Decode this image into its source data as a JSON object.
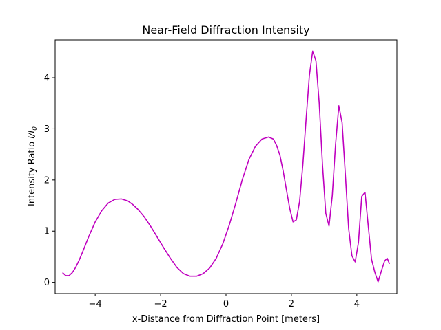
{
  "chart_data": {
    "type": "line",
    "title": "Near-Field Diffraction Intensity",
    "xlabel": "x-Distance from Diffraction Point [meters]",
    "ylabel_main": "Intensity Ratio ",
    "ylabel_italic": "I/I",
    "ylabel_sub": "0",
    "xlim": [
      -5.225,
      5.225
    ],
    "ylim": [
      -0.22,
      4.74
    ],
    "xticks": [
      -4,
      -2,
      0,
      2,
      4
    ],
    "yticks": [
      0,
      1,
      2,
      3,
      4
    ],
    "xtick_labels": [
      "−4",
      "−2",
      "0",
      "2",
      "4"
    ],
    "ytick_labels": [
      "0",
      "1",
      "2",
      "3",
      "4"
    ],
    "grid": false,
    "series": [
      {
        "color": "#bf00bf",
        "x": [
          -5.0,
          -4.9,
          -4.8,
          -4.7,
          -4.6,
          -4.5,
          -4.4,
          -4.2,
          -4.0,
          -3.8,
          -3.6,
          -3.4,
          -3.2,
          -3.0,
          -2.85,
          -2.7,
          -2.5,
          -2.3,
          -2.1,
          -1.9,
          -1.7,
          -1.5,
          -1.3,
          -1.1,
          -0.9,
          -0.7,
          -0.5,
          -0.3,
          -0.1,
          0.1,
          0.3,
          0.5,
          0.7,
          0.9,
          1.1,
          1.3,
          1.45,
          1.55,
          1.65,
          1.75,
          1.85,
          1.95,
          2.05,
          2.15,
          2.25,
          2.35,
          2.45,
          2.55,
          2.65,
          2.75,
          2.85,
          2.95,
          3.05,
          3.15,
          3.25,
          3.35,
          3.45,
          3.55,
          3.65,
          3.75,
          3.85,
          3.95,
          4.05,
          4.15,
          4.25,
          4.35,
          4.45,
          4.55,
          4.65,
          4.75,
          4.85,
          4.93,
          5.0
        ],
        "y": [
          0.19,
          0.13,
          0.13,
          0.19,
          0.29,
          0.42,
          0.57,
          0.89,
          1.18,
          1.4,
          1.55,
          1.62,
          1.63,
          1.59,
          1.52,
          1.43,
          1.28,
          1.09,
          0.88,
          0.67,
          0.47,
          0.29,
          0.17,
          0.12,
          0.12,
          0.17,
          0.28,
          0.47,
          0.75,
          1.12,
          1.55,
          2.01,
          2.4,
          2.66,
          2.8,
          2.84,
          2.8,
          2.67,
          2.48,
          2.17,
          1.8,
          1.44,
          1.18,
          1.22,
          1.58,
          2.3,
          3.2,
          4.05,
          4.52,
          4.33,
          3.5,
          2.3,
          1.35,
          1.1,
          1.7,
          2.7,
          3.45,
          3.12,
          2.1,
          1.05,
          0.52,
          0.4,
          0.78,
          1.68,
          1.76,
          1.1,
          0.45,
          0.2,
          0.01,
          0.22,
          0.42,
          0.47,
          0.36
        ]
      }
    ]
  }
}
